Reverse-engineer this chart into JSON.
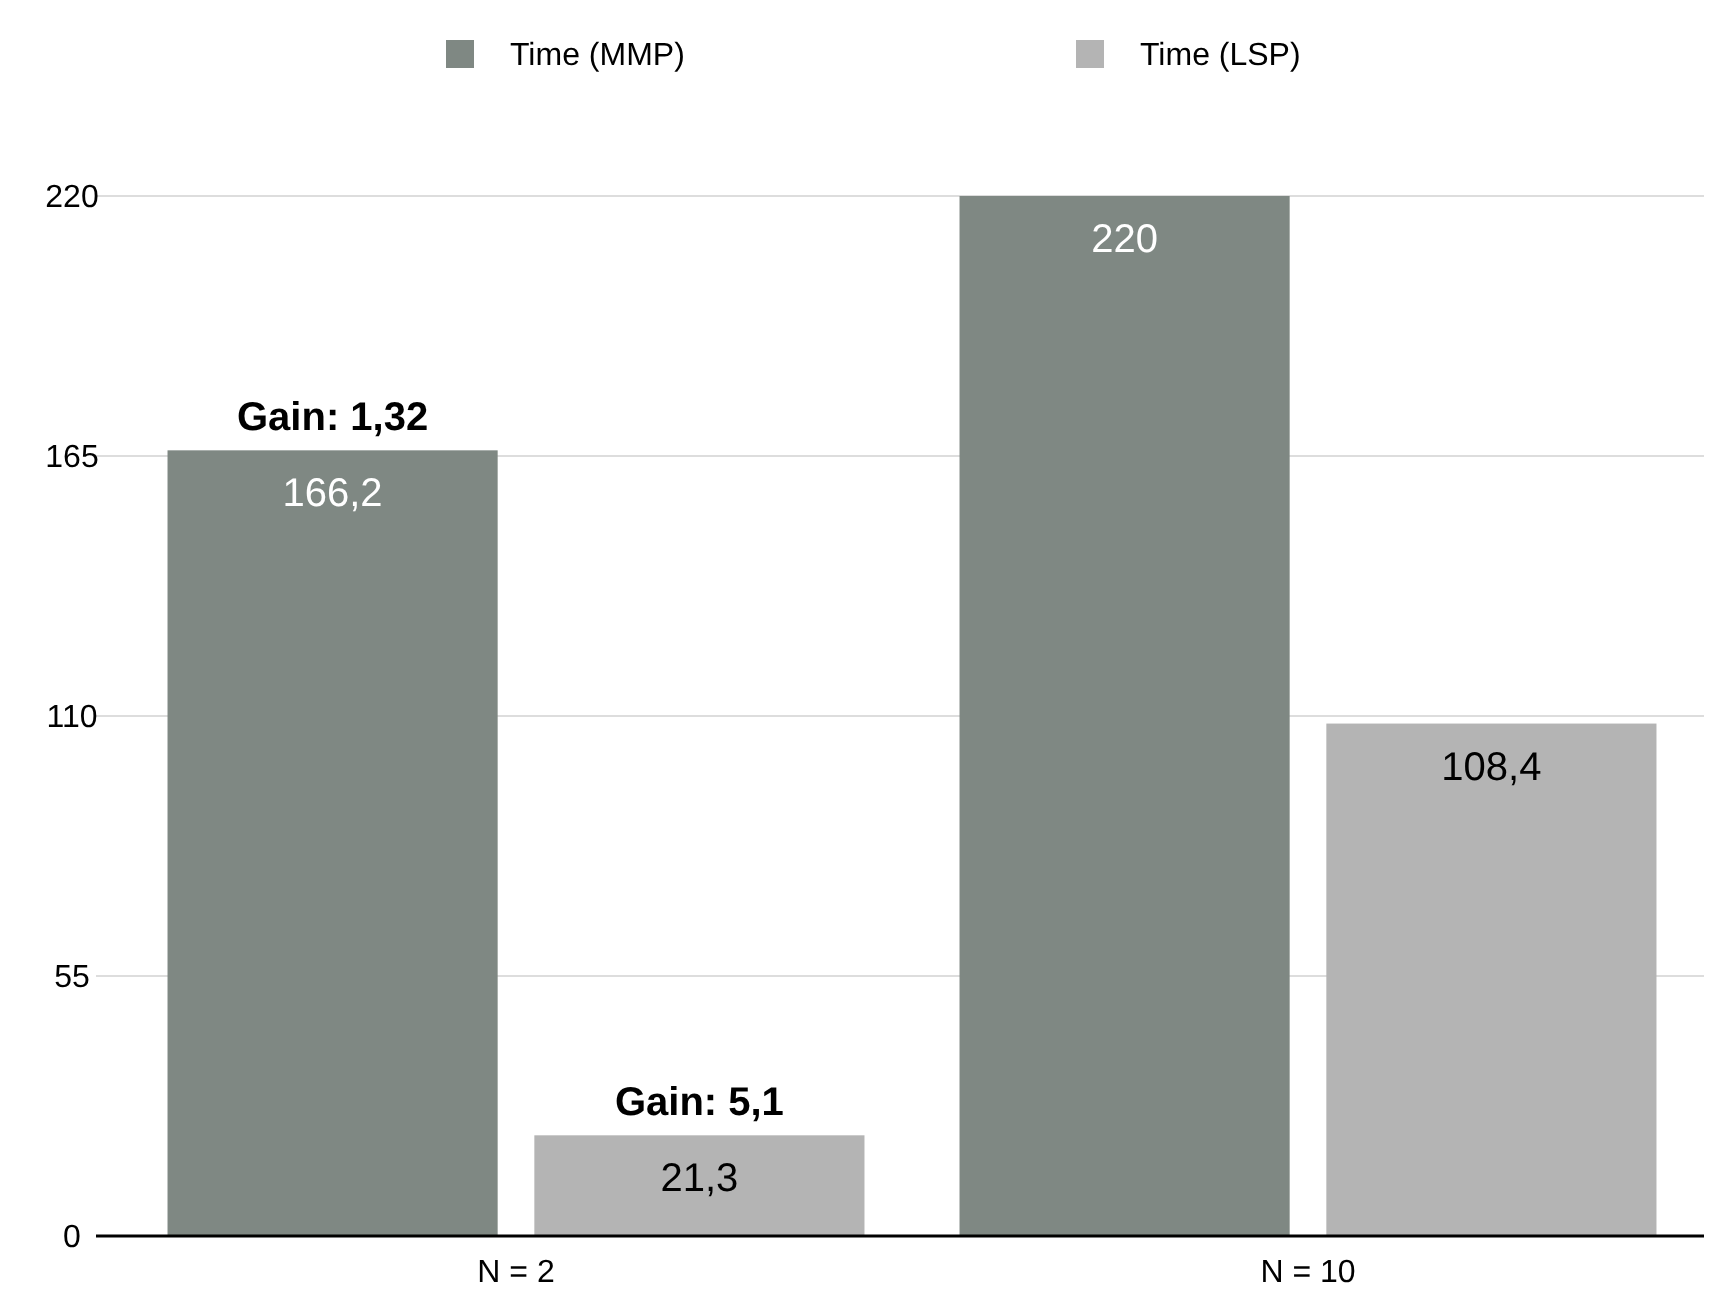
{
  "chart_data": {
    "type": "bar",
    "categories": [
      "N = 2",
      "N = 10"
    ],
    "series": [
      {
        "name": "Time (MMP)",
        "color": "#7f8883",
        "values": [
          166.2,
          220
        ],
        "value_labels": [
          "166,2",
          "220"
        ]
      },
      {
        "name": "Time (LSP)",
        "color": "#b4b4b4",
        "values": [
          21.3,
          108.4
        ],
        "value_labels": [
          "21,3",
          "108,4"
        ]
      }
    ],
    "ylim": [
      0,
      220
    ],
    "yticks": [
      0,
      55,
      110,
      165,
      220
    ],
    "grid": "y",
    "legend": "top",
    "annotations": [
      "Gain: 1,32",
      "Gain: 5,1"
    ]
  }
}
